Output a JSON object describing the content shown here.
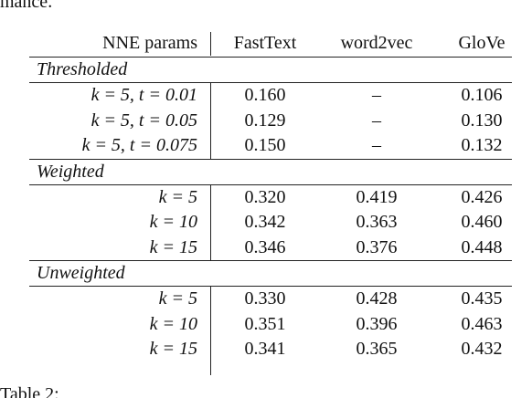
{
  "preceding_text": "mance.",
  "table": {
    "header": [
      "NNE params",
      "FastText",
      "word2vec",
      "GloVe"
    ],
    "sections": [
      {
        "label": "Thresholded",
        "rows": [
          [
            "k = 5, t = 0.01",
            "0.160",
            "–",
            "0.106"
          ],
          [
            "k = 5, t = 0.05",
            "0.129",
            "–",
            "0.130"
          ],
          [
            "k = 5, t = 0.075",
            "0.150",
            "–",
            "0.132"
          ]
        ]
      },
      {
        "label": "Weighted",
        "rows": [
          [
            "k = 5",
            "0.320",
            "0.419",
            "0.426"
          ],
          [
            "k = 10",
            "0.342",
            "0.363",
            "0.460"
          ],
          [
            "k = 15",
            "0.346",
            "0.376",
            "0.448"
          ]
        ]
      },
      {
        "label": "Unweighted",
        "rows": [
          [
            "k = 5",
            "0.330",
            "0.428",
            "0.435"
          ],
          [
            "k = 10",
            "0.351",
            "0.396",
            "0.463"
          ],
          [
            "k = 15",
            "0.341",
            "0.365",
            "0.432"
          ]
        ]
      }
    ]
  },
  "caption": "Table 2:"
}
